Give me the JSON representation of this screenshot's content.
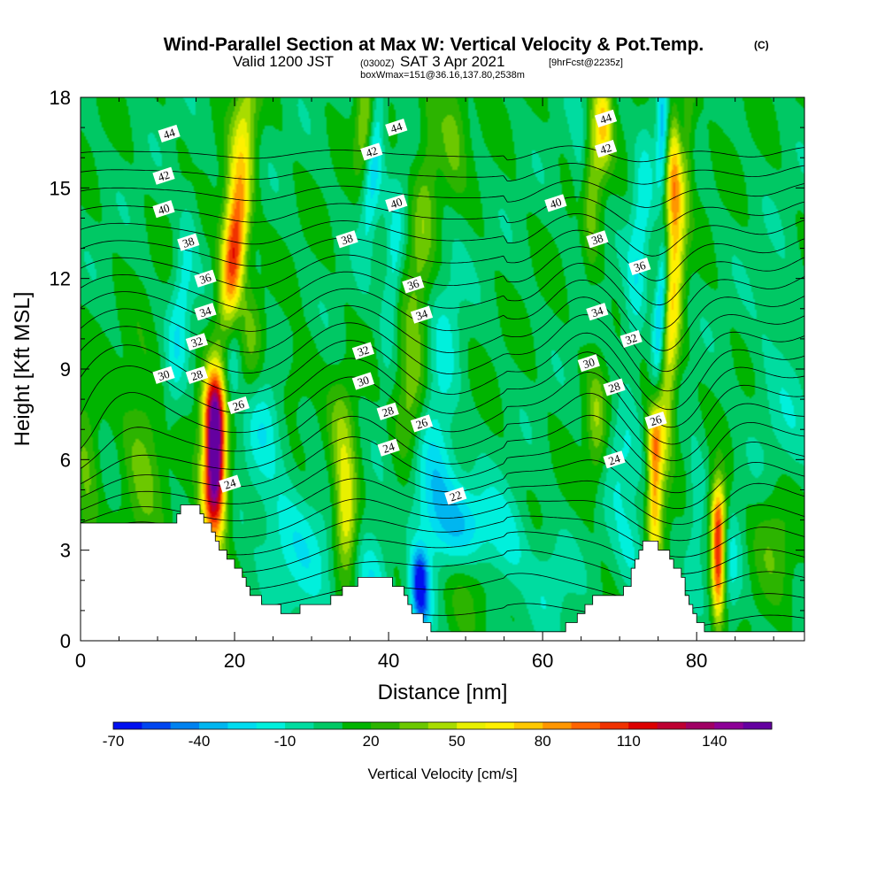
{
  "title": {
    "main": "Wind-Parallel Section at Max W: Vertical Velocity & Pot.Temp.",
    "main_tag": "(C)",
    "valid_a": "Valid 1200 JST",
    "valid_b": "(0300Z)",
    "valid_c": "SAT 3 Apr 2021",
    "valid_d": "[9hrFcst@2235z]",
    "box": "boxWmax=151@36.16,137.80,2538m"
  },
  "chart_data": {
    "type": "heatmap",
    "xlabel": "Distance [nm]",
    "ylabel": "Height [Kft MSL]",
    "xlim": [
      0,
      94
    ],
    "ylim": [
      0,
      18
    ],
    "xticks": [
      0,
      20,
      40,
      60,
      80
    ],
    "yticks": [
      0,
      3,
      6,
      9,
      12,
      15,
      18
    ],
    "colorbar": {
      "label": "Vertical Velocity [cm/s]",
      "tick_labels": [
        "-70",
        "-40",
        "-10",
        "20",
        "50",
        "80",
        "110",
        "140"
      ],
      "levels_min": -70,
      "levels_step": 10,
      "colors": [
        "#0010f0",
        "#0046f0",
        "#0082f0",
        "#00b6f0",
        "#00dcf0",
        "#00f0dc",
        "#00dca0",
        "#00c864",
        "#00b400",
        "#2cb400",
        "#6cc800",
        "#a8dc00",
        "#e8f000",
        "#fff000",
        "#ffc800",
        "#ff9600",
        "#ff6400",
        "#f03200",
        "#dc0000",
        "#be0032",
        "#a00064",
        "#8c0096",
        "#6400a0"
      ]
    },
    "terrain_kft": [
      [
        0,
        3.9
      ],
      [
        12,
        3.9
      ],
      [
        13,
        4.5
      ],
      [
        15,
        4.5
      ],
      [
        16,
        4.0
      ],
      [
        17,
        3.5
      ],
      [
        18,
        3.0
      ],
      [
        20,
        2.5
      ],
      [
        21,
        2.0
      ],
      [
        22,
        1.5
      ],
      [
        23,
        1.4
      ],
      [
        24,
        1.2
      ],
      [
        26,
        1.0
      ],
      [
        28,
        1.0
      ],
      [
        30,
        1.3
      ],
      [
        32,
        1.3
      ],
      [
        34,
        1.7
      ],
      [
        36,
        2.0
      ],
      [
        39,
        2.0
      ],
      [
        41,
        1.9
      ],
      [
        43,
        1.0
      ],
      [
        45,
        0.5
      ],
      [
        46,
        0.3
      ],
      [
        48,
        0.3
      ],
      [
        53,
        0.3
      ],
      [
        60,
        0.3
      ],
      [
        62,
        0.4
      ],
      [
        64,
        0.5
      ],
      [
        65,
        1.0
      ],
      [
        67,
        1.5
      ],
      [
        69,
        1.4
      ],
      [
        71,
        1.8
      ],
      [
        72,
        2.7
      ],
      [
        73,
        3.3
      ],
      [
        76,
        3.0
      ],
      [
        77,
        2.5
      ],
      [
        78,
        2.0
      ],
      [
        79,
        1.2
      ],
      [
        80,
        0.6
      ],
      [
        81,
        0.4
      ],
      [
        84,
        0.3
      ],
      [
        86,
        0.4
      ],
      [
        88,
        0.3
      ],
      [
        94,
        0.3
      ]
    ],
    "w_cores": [
      {
        "x": 0.8,
        "z": 5.0,
        "w": 22,
        "sx": 1.2,
        "sz": 2.5,
        "lean": 0
      },
      {
        "x": 8.0,
        "z": 6.3,
        "w": 25,
        "sx": 2.0,
        "sz": 2.2,
        "lean": 0
      },
      {
        "x": 17.5,
        "z": 6.5,
        "w": 140,
        "sx": 0.9,
        "sz": 1.5,
        "lean": 0
      },
      {
        "x": 17.2,
        "z": 4.6,
        "w": 70,
        "sx": 1.2,
        "sz": 1.3,
        "lean": 0
      },
      {
        "x": 17.3,
        "z": 7.8,
        "w": 45,
        "sx": 1.2,
        "sz": 0.9,
        "lean": 0
      },
      {
        "x": 20.5,
        "z": 15.0,
        "w": 55,
        "sx": 1.2,
        "sz": 3.0,
        "lean": 0.35
      },
      {
        "x": 20.0,
        "z": 12.8,
        "w": 65,
        "sx": 1.0,
        "sz": 1.5,
        "lean": 0.35
      },
      {
        "x": 22.0,
        "z": 10.0,
        "w": 20,
        "sx": 1.2,
        "sz": 1.5,
        "lean": 0
      },
      {
        "x": 27.0,
        "z": 8.5,
        "w": 18,
        "sx": 2.0,
        "sz": 1.0,
        "lean": 0.5
      },
      {
        "x": 34.5,
        "z": 4.0,
        "w": 55,
        "sx": 1.0,
        "sz": 1.3,
        "lean": 0
      },
      {
        "x": 34.0,
        "z": 6.5,
        "w": 28,
        "sx": 1.2,
        "sz": 1.5,
        "lean": 0
      },
      {
        "x": 37.0,
        "z": 17.0,
        "w": 38,
        "sx": 0.9,
        "sz": 1.2,
        "lean": 0
      },
      {
        "x": 43.0,
        "z": 8.0,
        "w": 28,
        "sx": 1.3,
        "sz": 1.5,
        "lean": 0.3
      },
      {
        "x": 44.5,
        "z": 14.0,
        "w": 25,
        "sx": 1.2,
        "sz": 4.0,
        "lean": 0.35
      },
      {
        "x": 48.5,
        "z": 17.0,
        "w": 25,
        "sx": 1.2,
        "sz": 1.5,
        "lean": 0
      },
      {
        "x": 50.0,
        "z": 1.8,
        "w": 18,
        "sx": 2.0,
        "sz": 1.0,
        "lean": 0
      },
      {
        "x": 66.5,
        "z": 15.5,
        "w": 30,
        "sx": 1.0,
        "sz": 2.5,
        "lean": 0.2
      },
      {
        "x": 68.0,
        "z": 17.2,
        "w": 50,
        "sx": 0.8,
        "sz": 1.0,
        "lean": 0
      },
      {
        "x": 67.0,
        "z": 7.2,
        "w": 28,
        "sx": 0.9,
        "sz": 1.5,
        "lean": 0
      },
      {
        "x": 74.5,
        "z": 5.0,
        "w": 60,
        "sx": 0.6,
        "sz": 1.6,
        "lean": 0
      },
      {
        "x": 74.5,
        "z": 6.8,
        "w": 40,
        "sx": 0.8,
        "sz": 0.8,
        "lean": 0
      },
      {
        "x": 77.0,
        "z": 11.5,
        "w": 55,
        "sx": 0.9,
        "sz": 5.0,
        "lean": 0.25
      },
      {
        "x": 76.8,
        "z": 15.0,
        "w": 65,
        "sx": 0.8,
        "sz": 1.8,
        "lean": 0.25
      },
      {
        "x": 82.8,
        "z": 2.6,
        "w": 100,
        "sx": 0.6,
        "sz": 1.4,
        "lean": 0
      },
      {
        "x": 82.8,
        "z": 4.3,
        "w": 45,
        "sx": 0.8,
        "sz": 0.8,
        "lean": 0
      },
      {
        "x": 90.0,
        "z": 3.5,
        "w": 22,
        "sx": 2.0,
        "sz": 1.5,
        "lean": 0
      },
      {
        "x": 13.0,
        "z": 11.0,
        "w": -25,
        "sx": 1.0,
        "sz": 2.5,
        "lean": 0.35
      },
      {
        "x": 19.5,
        "z": 9.0,
        "w": -25,
        "sx": 1.0,
        "sz": 1.5,
        "lean": 0.4
      },
      {
        "x": 24.0,
        "z": 7.5,
        "w": -25,
        "sx": 1.8,
        "sz": 1.5,
        "lean": 0.4
      },
      {
        "x": 26.0,
        "z": 3.5,
        "w": -20,
        "sx": 2.5,
        "sz": 1.5,
        "lean": 0
      },
      {
        "x": 30.0,
        "z": 3.0,
        "w": -15,
        "sx": 2.5,
        "sz": 1.5,
        "lean": 0
      },
      {
        "x": 38.0,
        "z": 16.0,
        "w": -40,
        "sx": 0.8,
        "sz": 2.0,
        "lean": 0.3
      },
      {
        "x": 40.5,
        "z": 12.0,
        "w": -25,
        "sx": 0.8,
        "sz": 2.0,
        "lean": 0.3
      },
      {
        "x": 38.0,
        "z": 2.0,
        "w": -30,
        "sx": 1.5,
        "sz": 1.2,
        "lean": 0
      },
      {
        "x": 44.0,
        "z": 2.1,
        "w": -60,
        "sx": 0.8,
        "sz": 0.7,
        "lean": 0
      },
      {
        "x": 44.3,
        "z": 1.0,
        "w": -40,
        "sx": 0.9,
        "sz": 0.7,
        "lean": 0
      },
      {
        "x": 46.0,
        "z": 5.0,
        "w": -28,
        "sx": 2.5,
        "sz": 1.5,
        "lean": 0
      },
      {
        "x": 47.0,
        "z": 9.0,
        "w": -18,
        "sx": 1.5,
        "sz": 3.0,
        "lean": 0.3
      },
      {
        "x": 50.0,
        "z": 3.8,
        "w": -28,
        "sx": 3.0,
        "sz": 1.0,
        "lean": 0
      },
      {
        "x": 55.5,
        "z": 3.0,
        "w": -20,
        "sx": 2.0,
        "sz": 1.2,
        "lean": 0
      },
      {
        "x": 61.0,
        "z": 2.0,
        "w": -15,
        "sx": 2.0,
        "sz": 1.2,
        "lean": 0
      },
      {
        "x": 65.0,
        "z": 15.0,
        "w": -15,
        "sx": 0.8,
        "sz": 2.5,
        "lean": 0
      },
      {
        "x": 70.0,
        "z": 6.0,
        "w": -18,
        "sx": 1.5,
        "sz": 1.2,
        "lean": 0
      },
      {
        "x": 71.5,
        "z": 3.0,
        "w": -18,
        "sx": 1.5,
        "sz": 1.2,
        "lean": 0
      },
      {
        "x": 72.5,
        "z": 13.0,
        "w": -25,
        "sx": 1.0,
        "sz": 3.0,
        "lean": 0.25
      },
      {
        "x": 75.5,
        "z": 11.5,
        "w": -60,
        "sx": 0.6,
        "sz": 2.0,
        "lean": 0.25
      },
      {
        "x": 75.5,
        "z": 17.0,
        "w": -45,
        "sx": 0.5,
        "sz": 1.5,
        "lean": 0
      },
      {
        "x": 78.0,
        "z": 17.0,
        "w": -30,
        "sx": 0.5,
        "sz": 1.5,
        "lean": 0
      },
      {
        "x": 80.0,
        "z": 4.5,
        "w": -18,
        "sx": 1.0,
        "sz": 1.5,
        "lean": 0
      },
      {
        "x": 84.5,
        "z": 2.2,
        "w": -18,
        "sx": 1.0,
        "sz": 1.5,
        "lean": 0
      },
      {
        "x": 91.0,
        "z": 8.0,
        "w": -12,
        "sx": 3.0,
        "sz": 3.0,
        "lean": 0
      }
    ],
    "theta_levels": [
      21,
      22,
      23,
      24,
      25,
      26,
      27,
      28,
      29,
      30,
      31,
      32,
      33,
      34,
      35,
      36,
      37,
      38,
      39,
      40,
      41,
      42,
      43,
      44,
      45
    ],
    "theta_labels": [
      {
        "text": "44",
        "x": 11.5,
        "z": 16.8
      },
      {
        "text": "42",
        "x": 10.8,
        "z": 15.4
      },
      {
        "text": "40",
        "x": 10.8,
        "z": 14.3
      },
      {
        "text": "38",
        "x": 14.0,
        "z": 13.2
      },
      {
        "text": "36",
        "x": 16.2,
        "z": 12.0
      },
      {
        "text": "34",
        "x": 16.2,
        "z": 10.9
      },
      {
        "text": "32",
        "x": 15.1,
        "z": 9.9
      },
      {
        "text": "30",
        "x": 10.8,
        "z": 8.8
      },
      {
        "text": "28",
        "x": 15.1,
        "z": 8.8
      },
      {
        "text": "26",
        "x": 20.5,
        "z": 7.8
      },
      {
        "text": "24",
        "x": 19.4,
        "z": 5.2
      },
      {
        "text": "38",
        "x": 34.6,
        "z": 13.3
      },
      {
        "text": "42",
        "x": 37.8,
        "z": 16.2
      },
      {
        "text": "44",
        "x": 41.0,
        "z": 17.0
      },
      {
        "text": "40",
        "x": 41.0,
        "z": 14.5
      },
      {
        "text": "36",
        "x": 43.2,
        "z": 11.8
      },
      {
        "text": "34",
        "x": 44.3,
        "z": 10.8
      },
      {
        "text": "32",
        "x": 36.7,
        "z": 9.6
      },
      {
        "text": "30",
        "x": 36.7,
        "z": 8.6
      },
      {
        "text": "28",
        "x": 39.9,
        "z": 7.6
      },
      {
        "text": "26",
        "x": 44.3,
        "z": 7.2
      },
      {
        "text": "24",
        "x": 40.0,
        "z": 6.4
      },
      {
        "text": "22",
        "x": 48.7,
        "z": 4.8
      },
      {
        "text": "44",
        "x": 68.2,
        "z": 17.3
      },
      {
        "text": "42",
        "x": 68.2,
        "z": 16.3
      },
      {
        "text": "40",
        "x": 61.7,
        "z": 14.5
      },
      {
        "text": "38",
        "x": 67.1,
        "z": 13.3
      },
      {
        "text": "36",
        "x": 72.6,
        "z": 12.4
      },
      {
        "text": "34",
        "x": 67.1,
        "z": 10.9
      },
      {
        "text": "32",
        "x": 71.5,
        "z": 10.0
      },
      {
        "text": "30",
        "x": 66.0,
        "z": 9.2
      },
      {
        "text": "28",
        "x": 69.3,
        "z": 8.4
      },
      {
        "text": "26",
        "x": 74.7,
        "z": 7.3
      },
      {
        "text": "24",
        "x": 69.3,
        "z": 6.0
      }
    ]
  }
}
